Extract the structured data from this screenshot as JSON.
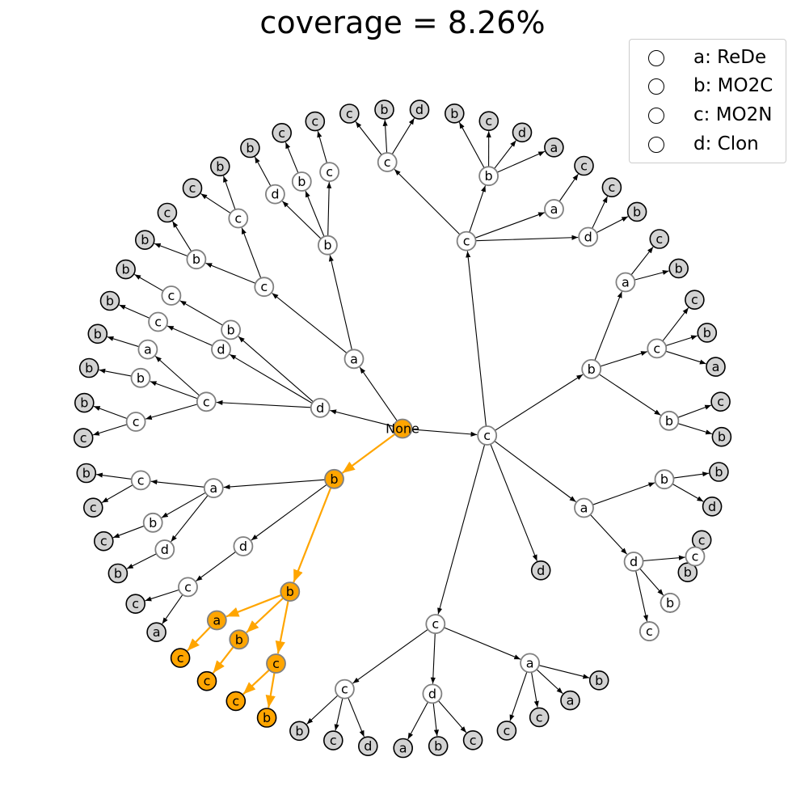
{
  "title": "coverage = 8.26%",
  "legend": [
    {
      "key": "a",
      "text": "a: ReDe"
    },
    {
      "key": "b",
      "text": "b: MO2C"
    },
    {
      "key": "c",
      "text": "c: MO2N"
    },
    {
      "key": "d",
      "text": "d: Clon"
    }
  ],
  "colors": {
    "highlight": "#ffa500",
    "leaf": "#d3d3d3",
    "internal": "#ffffff",
    "edge": "#000000"
  },
  "tree": {
    "label": "None",
    "hl": true,
    "children": [
      {
        "label": "b",
        "hl": true,
        "children": [
          {
            "label": "b",
            "hl": true,
            "children": [
              {
                "label": "c",
                "hl": true,
                "children": [
                  {
                    "label": "b",
                    "hl": true
                  },
                  {
                    "label": "c",
                    "hl": true
                  }
                ]
              },
              {
                "label": "b",
                "hl": true,
                "children": [
                  {
                    "label": "c",
                    "hl": true
                  }
                ]
              },
              {
                "label": "a",
                "hl": true,
                "children": [
                  {
                    "label": "c",
                    "hl": true
                  }
                ]
              }
            ]
          },
          {
            "label": "d",
            "children": [
              {
                "label": "c",
                "children": [
                  {
                    "label": "a"
                  },
                  {
                    "label": "c"
                  }
                ]
              }
            ]
          },
          {
            "label": "a",
            "children": [
              {
                "label": "d",
                "children": [
                  {
                    "label": "b"
                  }
                ]
              },
              {
                "label": "b",
                "children": [
                  {
                    "label": "c"
                  }
                ]
              },
              {
                "label": "c",
                "children": [
                  {
                    "label": "c"
                  },
                  {
                    "label": "b"
                  }
                ]
              }
            ]
          }
        ]
      },
      {
        "label": "d",
        "children": [
          {
            "label": "c",
            "children": [
              {
                "label": "c",
                "children": [
                  {
                    "label": "c"
                  },
                  {
                    "label": "b"
                  }
                ]
              },
              {
                "label": "b",
                "children": [
                  {
                    "label": "b"
                  }
                ]
              },
              {
                "label": "a",
                "children": [
                  {
                    "label": "b"
                  }
                ]
              }
            ]
          },
          {
            "label": "d",
            "children": [
              {
                "label": "c",
                "children": [
                  {
                    "label": "b"
                  }
                ]
              }
            ]
          },
          {
            "label": "b",
            "children": [
              {
                "label": "c",
                "children": [
                  {
                    "label": "b"
                  }
                ]
              }
            ]
          }
        ]
      },
      {
        "label": "a",
        "children": [
          {
            "label": "c",
            "children": [
              {
                "label": "b",
                "children": [
                  {
                    "label": "b"
                  },
                  {
                    "label": "c"
                  }
                ]
              },
              {
                "label": "c",
                "children": [
                  {
                    "label": "c"
                  },
                  {
                    "label": "b"
                  }
                ]
              }
            ]
          },
          {
            "label": "b",
            "children": [
              {
                "label": "d",
                "children": [
                  {
                    "label": "b"
                  }
                ]
              },
              {
                "label": "b",
                "children": [
                  {
                    "label": "c"
                  }
                ]
              },
              {
                "label": "c",
                "children": [
                  {
                    "label": "c"
                  }
                ]
              }
            ]
          }
        ]
      },
      {
        "label": "c",
        "children": [
          {
            "label": "c",
            "children": [
              {
                "label": "c",
                "children": [
                  {
                    "label": "c"
                  },
                  {
                    "label": "b"
                  },
                  {
                    "label": "d"
                  }
                ]
              },
              {
                "label": "b",
                "children": [
                  {
                    "label": "b"
                  },
                  {
                    "label": "c"
                  },
                  {
                    "label": "d"
                  },
                  {
                    "label": "a"
                  }
                ]
              },
              {
                "label": "a",
                "children": [
                  {
                    "label": "c"
                  }
                ]
              },
              {
                "label": "d",
                "children": [
                  {
                    "label": "c"
                  },
                  {
                    "label": "b"
                  }
                ]
              }
            ]
          },
          {
            "label": "b",
            "children": [
              {
                "label": "a",
                "children": [
                  {
                    "label": "c"
                  },
                  {
                    "label": "b"
                  }
                ]
              },
              {
                "label": "c",
                "children": [
                  {
                    "label": "c"
                  },
                  {
                    "label": "b"
                  },
                  {
                    "label": "a"
                  }
                ]
              },
              {
                "label": "b",
                "children": [
                  {
                    "label": "c"
                  },
                  {
                    "label": "b"
                  }
                ]
              }
            ]
          },
          {
            "label": "a",
            "children": [
              {
                "label": "b",
                "children": [
                  {
                    "label": "b"
                  },
                  {
                    "label": "d"
                  }
                ]
              },
              {
                "label": "d",
                "children": [
                  {
                    "label": "c",
                    "children": [
                      {
                        "label": "c"
                      },
                      {
                        "label": "b"
                      }
                    ]
                  },
                  {
                    "label": "b",
                    "children": [
                      {
                        "label": "c"
                      }
                    ]
                  },
                  {
                    "label": "c",
                    "children": [
                      {
                        "label": "b"
                      }
                    ]
                  }
                ]
              }
            ]
          },
          {
            "label": "d",
            "children": []
          },
          {
            "label": "c",
            "children": [
              {
                "label": "a",
                "children": [
                  {
                    "label": "b"
                  },
                  {
                    "label": "a"
                  },
                  {
                    "label": "c"
                  },
                  {
                    "label": "c"
                  }
                ]
              },
              {
                "label": "d",
                "children": [
                  {
                    "label": "c"
                  },
                  {
                    "label": "b"
                  },
                  {
                    "label": "a"
                  }
                ]
              },
              {
                "label": "c",
                "children": [
                  {
                    "label": "d"
                  },
                  {
                    "label": "c"
                  },
                  {
                    "label": "b"
                  }
                ]
              }
            ]
          }
        ]
      }
    ]
  }
}
